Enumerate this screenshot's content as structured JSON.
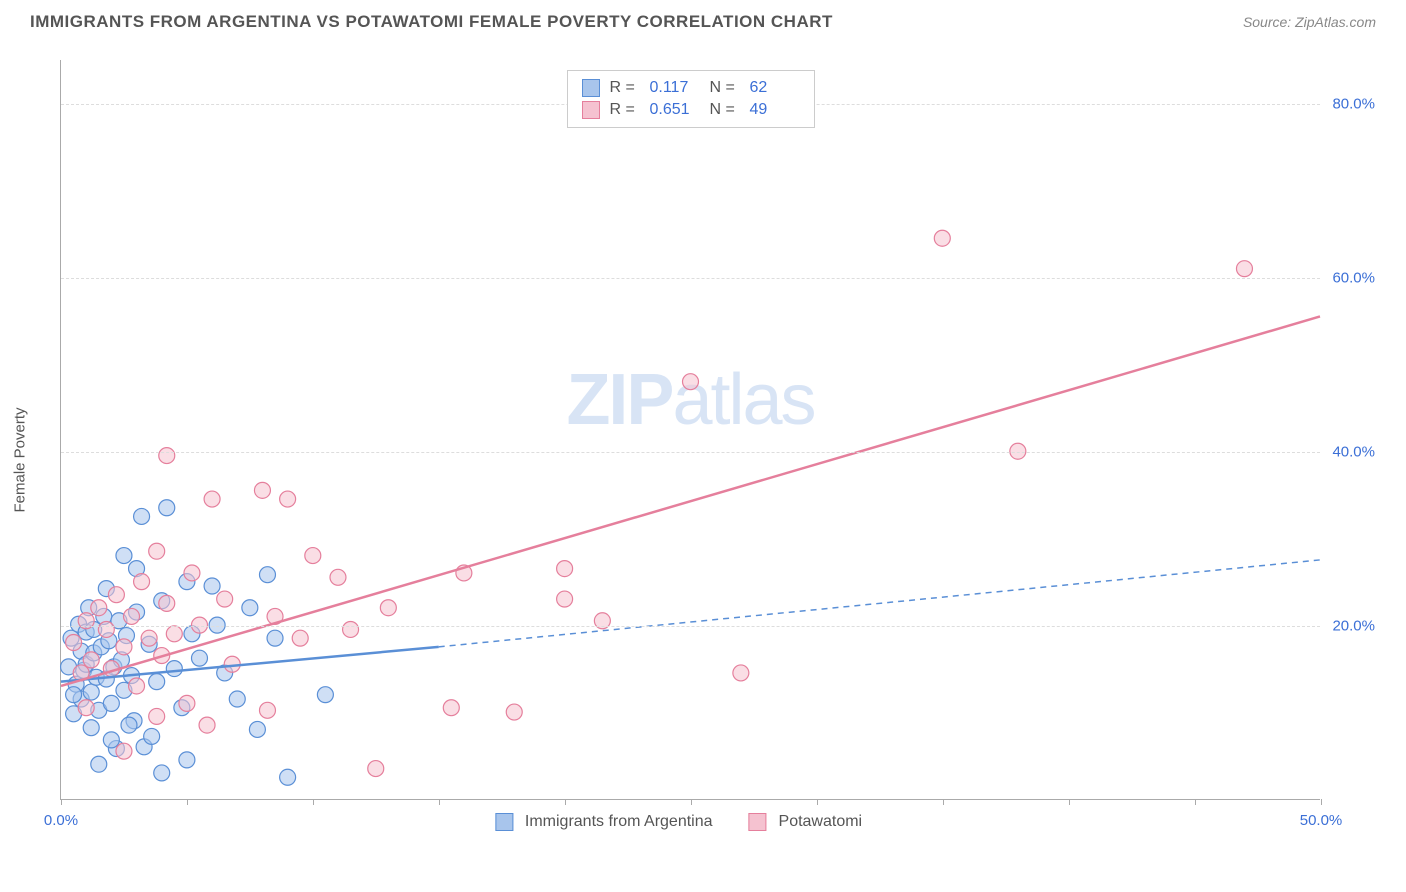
{
  "title": "IMMIGRANTS FROM ARGENTINA VS POTAWATOMI FEMALE POVERTY CORRELATION CHART",
  "source_label": "Source: ZipAtlas.com",
  "y_axis_label": "Female Poverty",
  "watermark_bold": "ZIP",
  "watermark_rest": "atlas",
  "chart": {
    "type": "scatter-correlation",
    "background_color": "#ffffff",
    "grid_color": "#dddddd",
    "axis_color": "#aaaaaa",
    "x_range": [
      0,
      50
    ],
    "y_range": [
      0,
      85
    ],
    "x_ticks": [
      0,
      5,
      10,
      15,
      20,
      25,
      30,
      35,
      40,
      45,
      50
    ],
    "x_tick_labels": {
      "0": "0.0%",
      "50": "50.0%"
    },
    "y_ticks": [
      20,
      40,
      60,
      80
    ],
    "y_tick_labels": {
      "20": "20.0%",
      "40": "40.0%",
      "60": "60.0%",
      "80": "80.0%"
    },
    "marker_radius": 8,
    "marker_stroke_width": 1.2,
    "trend_line_width": 2.5,
    "label_fontsize": 15,
    "tick_color": "#3b6fd6",
    "series": [
      {
        "name": "Immigrants from Argentina",
        "fill": "#a8c5ec",
        "stroke": "#5a8fd6",
        "fill_opacity": 0.55,
        "r_value": "0.117",
        "n_value": "62",
        "trend_solid": {
          "x1": 0,
          "y1": 13.5,
          "x2": 15,
          "y2": 17.5
        },
        "trend_dashed": {
          "x1": 15,
          "y1": 17.5,
          "x2": 50,
          "y2": 27.5
        },
        "points": [
          [
            0.3,
            15.2
          ],
          [
            0.4,
            18.5
          ],
          [
            0.5,
            9.8
          ],
          [
            0.6,
            13.2
          ],
          [
            0.7,
            20.1
          ],
          [
            0.8,
            17.0
          ],
          [
            0.8,
            11.5
          ],
          [
            0.9,
            14.8
          ],
          [
            1.0,
            19.2
          ],
          [
            1.0,
            15.5
          ],
          [
            1.1,
            22.0
          ],
          [
            1.2,
            12.3
          ],
          [
            1.3,
            16.8
          ],
          [
            1.3,
            19.5
          ],
          [
            1.4,
            14.0
          ],
          [
            1.5,
            10.2
          ],
          [
            1.6,
            17.5
          ],
          [
            1.7,
            21.0
          ],
          [
            1.8,
            13.8
          ],
          [
            1.9,
            18.2
          ],
          [
            2.0,
            11.0
          ],
          [
            2.1,
            15.2
          ],
          [
            2.2,
            5.8
          ],
          [
            2.3,
            20.5
          ],
          [
            2.4,
            16.0
          ],
          [
            2.5,
            12.5
          ],
          [
            2.6,
            18.8
          ],
          [
            2.8,
            14.2
          ],
          [
            2.9,
            9.0
          ],
          [
            3.0,
            21.5
          ],
          [
            3.2,
            32.5
          ],
          [
            3.5,
            17.8
          ],
          [
            3.8,
            13.5
          ],
          [
            4.0,
            22.8
          ],
          [
            4.2,
            33.5
          ],
          [
            4.5,
            15.0
          ],
          [
            4.8,
            10.5
          ],
          [
            5.0,
            25.0
          ],
          [
            5.2,
            19.0
          ],
          [
            5.5,
            16.2
          ],
          [
            2.7,
            8.5
          ],
          [
            6.0,
            24.5
          ],
          [
            6.2,
            20.0
          ],
          [
            6.5,
            14.5
          ],
          [
            3.3,
            6.0
          ],
          [
            3.6,
            7.2
          ],
          [
            7.5,
            22.0
          ],
          [
            8.2,
            25.8
          ],
          [
            8.5,
            18.5
          ],
          [
            4.0,
            3.0
          ],
          [
            9.0,
            2.5
          ],
          [
            5.0,
            4.5
          ],
          [
            1.5,
            4.0
          ],
          [
            2.0,
            6.8
          ],
          [
            10.5,
            12.0
          ],
          [
            7.0,
            11.5
          ],
          [
            3.0,
            26.5
          ],
          [
            7.8,
            8.0
          ],
          [
            1.2,
            8.2
          ],
          [
            0.5,
            12.0
          ],
          [
            1.8,
            24.2
          ],
          [
            2.5,
            28.0
          ]
        ]
      },
      {
        "name": "Potawatomi",
        "fill": "#f5c2d0",
        "stroke": "#e57f9c",
        "fill_opacity": 0.55,
        "r_value": "0.651",
        "n_value": "49",
        "trend_solid": {
          "x1": 0,
          "y1": 13.0,
          "x2": 50,
          "y2": 55.5
        },
        "trend_dashed": null,
        "points": [
          [
            0.5,
            18.0
          ],
          [
            0.8,
            14.5
          ],
          [
            1.0,
            20.5
          ],
          [
            1.2,
            16.0
          ],
          [
            1.5,
            22.0
          ],
          [
            1.8,
            19.5
          ],
          [
            2.0,
            15.0
          ],
          [
            2.2,
            23.5
          ],
          [
            2.5,
            17.5
          ],
          [
            2.8,
            21.0
          ],
          [
            3.0,
            13.0
          ],
          [
            3.2,
            25.0
          ],
          [
            3.5,
            18.5
          ],
          [
            3.8,
            28.5
          ],
          [
            4.0,
            16.5
          ],
          [
            4.2,
            22.5
          ],
          [
            4.5,
            19.0
          ],
          [
            5.0,
            11.0
          ],
          [
            5.2,
            26.0
          ],
          [
            5.5,
            20.0
          ],
          [
            5.8,
            8.5
          ],
          [
            6.0,
            34.5
          ],
          [
            6.5,
            23.0
          ],
          [
            4.2,
            39.5
          ],
          [
            8.0,
            35.5
          ],
          [
            8.5,
            21.0
          ],
          [
            9.0,
            34.5
          ],
          [
            9.5,
            18.5
          ],
          [
            10.0,
            28.0
          ],
          [
            8.2,
            10.2
          ],
          [
            11.0,
            25.5
          ],
          [
            11.5,
            19.5
          ],
          [
            12.5,
            3.5
          ],
          [
            15.5,
            10.5
          ],
          [
            13.0,
            22.0
          ],
          [
            18.0,
            10.0
          ],
          [
            20.0,
            23.0
          ],
          [
            20.0,
            26.5
          ],
          [
            21.5,
            20.5
          ],
          [
            25.0,
            48.0
          ],
          [
            27.0,
            14.5
          ],
          [
            35.0,
            64.5
          ],
          [
            38.0,
            40.0
          ],
          [
            47.0,
            61.0
          ],
          [
            1.0,
            10.5
          ],
          [
            2.5,
            5.5
          ],
          [
            3.8,
            9.5
          ],
          [
            6.8,
            15.5
          ],
          [
            16.0,
            26.0
          ]
        ]
      }
    ]
  },
  "legend_bottom": [
    {
      "label": "Immigrants from Argentina",
      "fill": "#a8c5ec",
      "stroke": "#5a8fd6"
    },
    {
      "label": "Potawatomi",
      "fill": "#f5c2d0",
      "stroke": "#e57f9c"
    }
  ]
}
